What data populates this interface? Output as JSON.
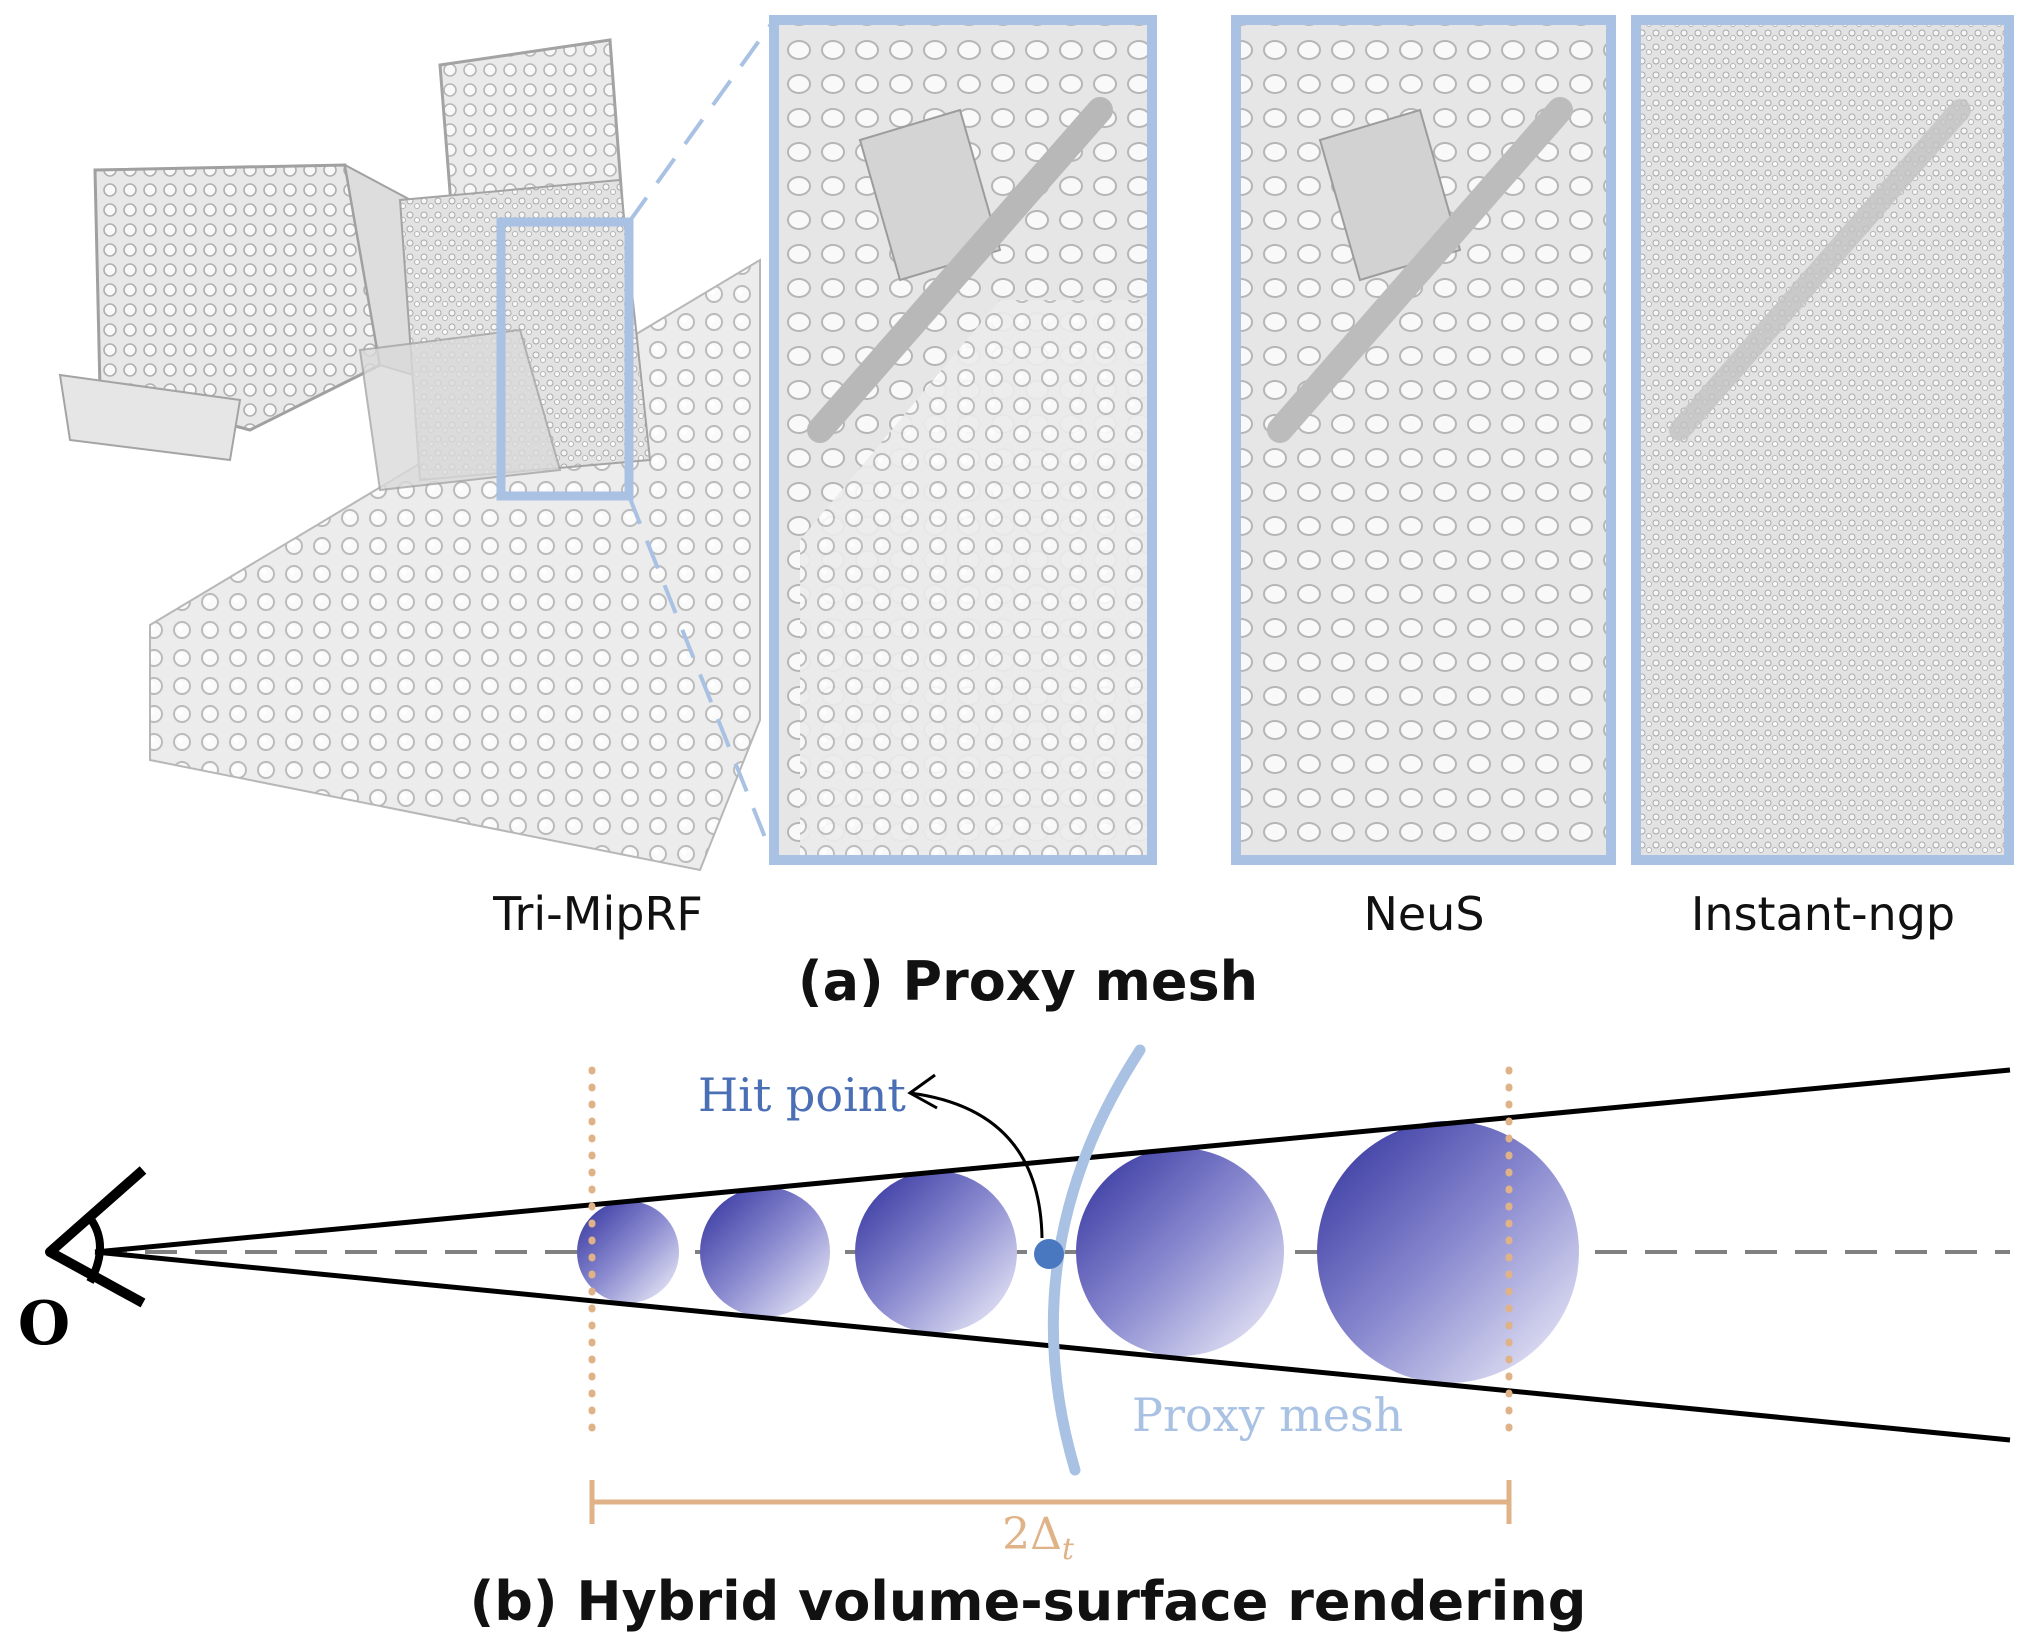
{
  "panel_a": {
    "caption": "(a) Proxy mesh",
    "labels": {
      "tri_miprf": "Tri-MipRF",
      "neus": "NeuS",
      "instant_ngp": "Instant-ngp"
    }
  },
  "panel_b": {
    "caption": "(b) Hybrid volume-surface rendering",
    "origin_label": "O",
    "hit_point_label": "Hit point",
    "proxy_mesh_label": "Proxy mesh",
    "interval_label_main": "2Δ",
    "interval_label_sub": "t"
  },
  "colors": {
    "frame_blue": "#a9c2e4",
    "interval_orange": "#e0b287",
    "sphere_dark": "#3a3aa8",
    "hit_point": "#4a78c0",
    "dashed_axis": "#808080",
    "proxy_mesh_text": "#a9c2e4",
    "hit_text": "#4a6fb5"
  },
  "icons": {
    "eye": "eye-icon",
    "arrow": "curved-arrow-icon"
  }
}
